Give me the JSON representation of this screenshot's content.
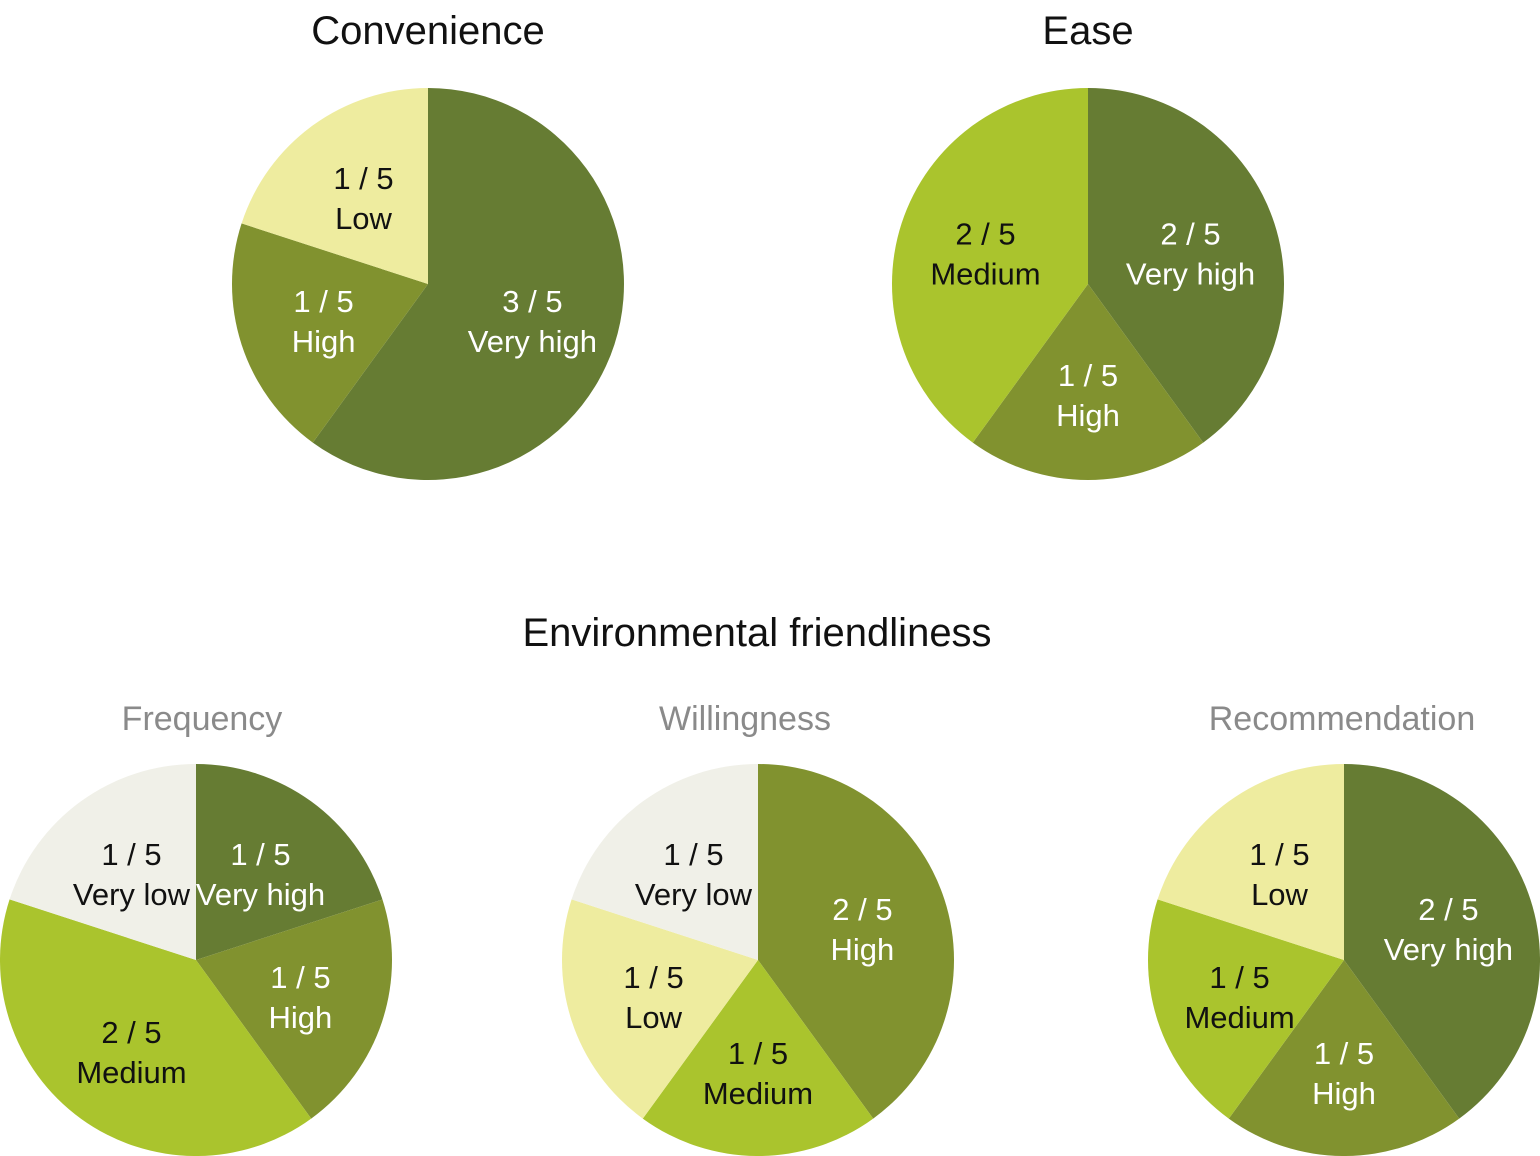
{
  "colors": {
    "very_high": "#667c33",
    "high": "#81922f",
    "medium": "#aac42d",
    "low": "#eeec9f",
    "very_low": "#f0f0e8",
    "label_light": "#ffffff",
    "label_dark": "#111111"
  },
  "groups": [
    {
      "title": "Environmental friendliness"
    }
  ],
  "chart_data": [
    {
      "type": "pie",
      "title": "Convenience",
      "level": "main",
      "slices": [
        {
          "label": "Very high",
          "value": 3,
          "text": "3 / 5",
          "color_key": "very_high"
        },
        {
          "label": "High",
          "value": 1,
          "text": "1 / 5",
          "color_key": "high"
        },
        {
          "label": "Low",
          "value": 1,
          "text": "1 / 5",
          "color_key": "low"
        }
      ]
    },
    {
      "type": "pie",
      "title": "Ease",
      "level": "main",
      "slices": [
        {
          "label": "Very high",
          "value": 2,
          "text": "2 / 5",
          "color_key": "very_high"
        },
        {
          "label": "High",
          "value": 1,
          "text": "1 / 5",
          "color_key": "high"
        },
        {
          "label": "Medium",
          "value": 2,
          "text": "2 / 5",
          "color_key": "medium"
        }
      ]
    },
    {
      "type": "pie",
      "title": "Frequency",
      "level": "sub",
      "slices": [
        {
          "label": "Very high",
          "value": 1,
          "text": "1 / 5",
          "color_key": "very_high"
        },
        {
          "label": "High",
          "value": 1,
          "text": "1 / 5",
          "color_key": "high"
        },
        {
          "label": "Medium",
          "value": 2,
          "text": "2 / 5",
          "color_key": "medium"
        },
        {
          "label": "Very low",
          "value": 1,
          "text": "1 / 5",
          "color_key": "very_low"
        }
      ]
    },
    {
      "type": "pie",
      "title": "Willingness",
      "level": "sub",
      "slices": [
        {
          "label": "High",
          "value": 2,
          "text": "2 / 5",
          "color_key": "high"
        },
        {
          "label": "Medium",
          "value": 1,
          "text": "1 / 5",
          "color_key": "medium"
        },
        {
          "label": "Low",
          "value": 1,
          "text": "1 / 5",
          "color_key": "low"
        },
        {
          "label": "Very low",
          "value": 1,
          "text": "1 / 5",
          "color_key": "very_low"
        }
      ]
    },
    {
      "type": "pie",
      "title": "Recommendation",
      "level": "sub",
      "slices": [
        {
          "label": "Very high",
          "value": 2,
          "text": "2 / 5",
          "color_key": "very_high"
        },
        {
          "label": "High",
          "value": 1,
          "text": "1 / 5",
          "color_key": "high"
        },
        {
          "label": "Medium",
          "value": 1,
          "text": "1 / 5",
          "color_key": "medium"
        },
        {
          "label": "Low",
          "value": 1,
          "text": "1 / 5",
          "color_key": "low"
        }
      ]
    }
  ]
}
